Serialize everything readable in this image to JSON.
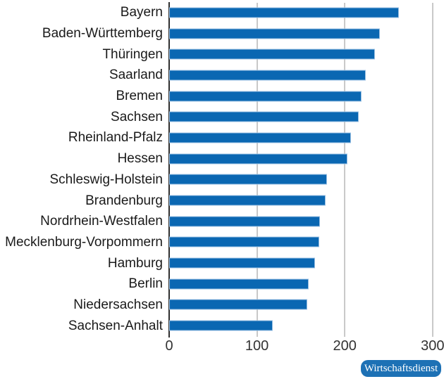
{
  "chart_data": {
    "type": "bar",
    "orientation": "horizontal",
    "title": "",
    "xlabel": "",
    "ylabel": "",
    "categories": [
      "Bayern",
      "Baden-Württemberg",
      "Thüringen",
      "Saarland",
      "Bremen",
      "Sachsen",
      "Rheinland-Pfalz",
      "Hessen",
      "Schleswig-Holstein",
      "Brandenburg",
      "Nordrhein-Westfalen",
      "Mecklenburg-Vorpommern",
      "Hamburg",
      "Berlin",
      "Niedersachsen",
      "Sachsen-Anhalt"
    ],
    "values": [
      262,
      240,
      234,
      224,
      219,
      216,
      207,
      203,
      180,
      178,
      172,
      171,
      166,
      159,
      157,
      118
    ],
    "xlim": [
      0,
      313
    ],
    "x_ticks": [
      0,
      100,
      200,
      300
    ],
    "gridlines": "vertical-only",
    "legend": "none",
    "bar_color": "#0a67b2",
    "bar_border_color": "#9fc3e4"
  },
  "branding": {
    "badge_label": "Wirtschaftsdienst",
    "badge_bg": "#1d71b5",
    "badge_text_color": "#ffffff"
  },
  "colors": {
    "background": "#ffffff",
    "gridline": "#c9c9c9",
    "axis_line": "#2f2f2f",
    "category_text": "#1a1a1a",
    "tick_text": "#333333"
  }
}
